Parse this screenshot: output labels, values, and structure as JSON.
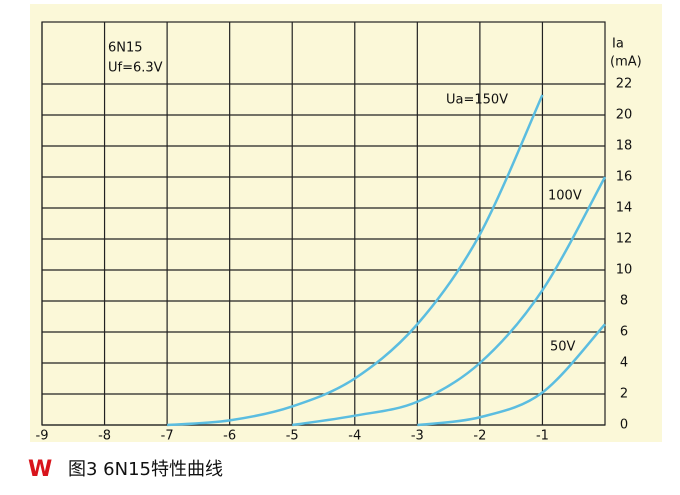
{
  "chart_data": {
    "type": "line",
    "annotations": [
      "6N15",
      "Uf=6.3V"
    ],
    "y_label": [
      "Ia",
      "(mA)"
    ],
    "x": [
      -7,
      -6,
      -5,
      -4,
      -3,
      -2,
      -1,
      0
    ],
    "series": [
      {
        "name": "Ua=150V",
        "color": "#5bbde0",
        "values": [
          0,
          0.3,
          1.2,
          3,
          6.5,
          12.3,
          21.3,
          null
        ]
      },
      {
        "name": "100V",
        "color": "#5bbde0",
        "values": [
          null,
          null,
          0,
          0.6,
          1.5,
          4,
          8.7,
          16
        ]
      },
      {
        "name": "50V",
        "color": "#5bbde0",
        "values": [
          null,
          null,
          null,
          null,
          0,
          0.5,
          2.1,
          6.5
        ]
      }
    ],
    "xlim": [
      -9,
      0
    ],
    "xticks": [
      -9,
      -8,
      -7,
      -6,
      -5,
      -4,
      -3,
      -2,
      -1
    ],
    "ylim": [
      0,
      26
    ],
    "yticks": [
      0,
      2,
      4,
      6,
      8,
      10,
      12,
      14,
      16,
      18,
      20,
      22
    ],
    "grid": true,
    "caption": {
      "logo": "W",
      "text": "图3 6N15特性曲线"
    }
  }
}
